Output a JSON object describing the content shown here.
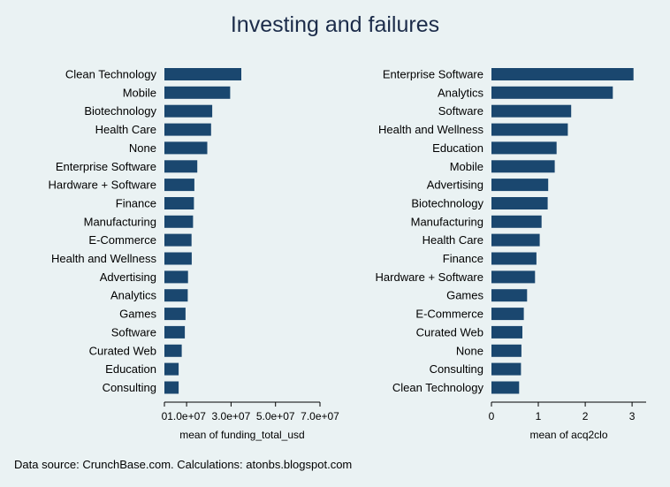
{
  "colors": {
    "background": "#eaf2f3",
    "bar": "#1a476f",
    "title": "#1c2c4a"
  },
  "title": "Investing and failures",
  "note": "Data source: CrunchBase.com. Calculations: atonbs.blogspot.com",
  "chart_data": [
    {
      "type": "bar",
      "orientation": "horizontal",
      "title": "",
      "xlabel": "mean of funding_total_usd",
      "ylabel": "",
      "xlim": [
        0,
        70000000
      ],
      "grid": false,
      "xticks": [
        0,
        10000000,
        30000000,
        50000000,
        70000000
      ],
      "xtick_labels": [
        "0",
        "1.0e+07",
        "3.0e+07",
        "5.0e+07",
        "7.0e+07"
      ],
      "categories": [
        "Clean Technology",
        "Mobile",
        "Biotechnology",
        "Health Care",
        "None",
        "Enterprise Software",
        "Hardware + Software",
        "Finance",
        "Manufacturing",
        "E-Commerce",
        "Health and Wellness",
        "Advertising",
        "Analytics",
        "Games",
        "Software",
        "Curated Web",
        "Education",
        "Consulting"
      ],
      "values": [
        34600000,
        29600000,
        21500000,
        21000000,
        19300000,
        14800000,
        13500000,
        13300000,
        12900000,
        12200000,
        12300000,
        10600000,
        10500000,
        9500000,
        9200000,
        7800000,
        6400000,
        6400000
      ]
    },
    {
      "type": "bar",
      "orientation": "horizontal",
      "title": "",
      "xlabel": "mean of acq2clo",
      "ylabel": "",
      "xlim": [
        0,
        3.3
      ],
      "grid": false,
      "xticks": [
        0,
        1,
        2,
        3
      ],
      "xtick_labels": [
        "0",
        "1",
        "2",
        "3"
      ],
      "categories": [
        "Enterprise Software",
        "Analytics",
        "Software",
        "Health and Wellness",
        "Education",
        "Mobile",
        "Advertising",
        "Biotechnology",
        "Manufacturing",
        "Health Care",
        "Finance",
        "Hardware + Software",
        "Games",
        "E-Commerce",
        "Curated Web",
        "None",
        "Consulting",
        "Clean Technology"
      ],
      "values": [
        3.03,
        2.59,
        1.7,
        1.63,
        1.39,
        1.35,
        1.21,
        1.2,
        1.07,
        1.03,
        0.96,
        0.93,
        0.76,
        0.69,
        0.66,
        0.64,
        0.63,
        0.59
      ]
    }
  ]
}
